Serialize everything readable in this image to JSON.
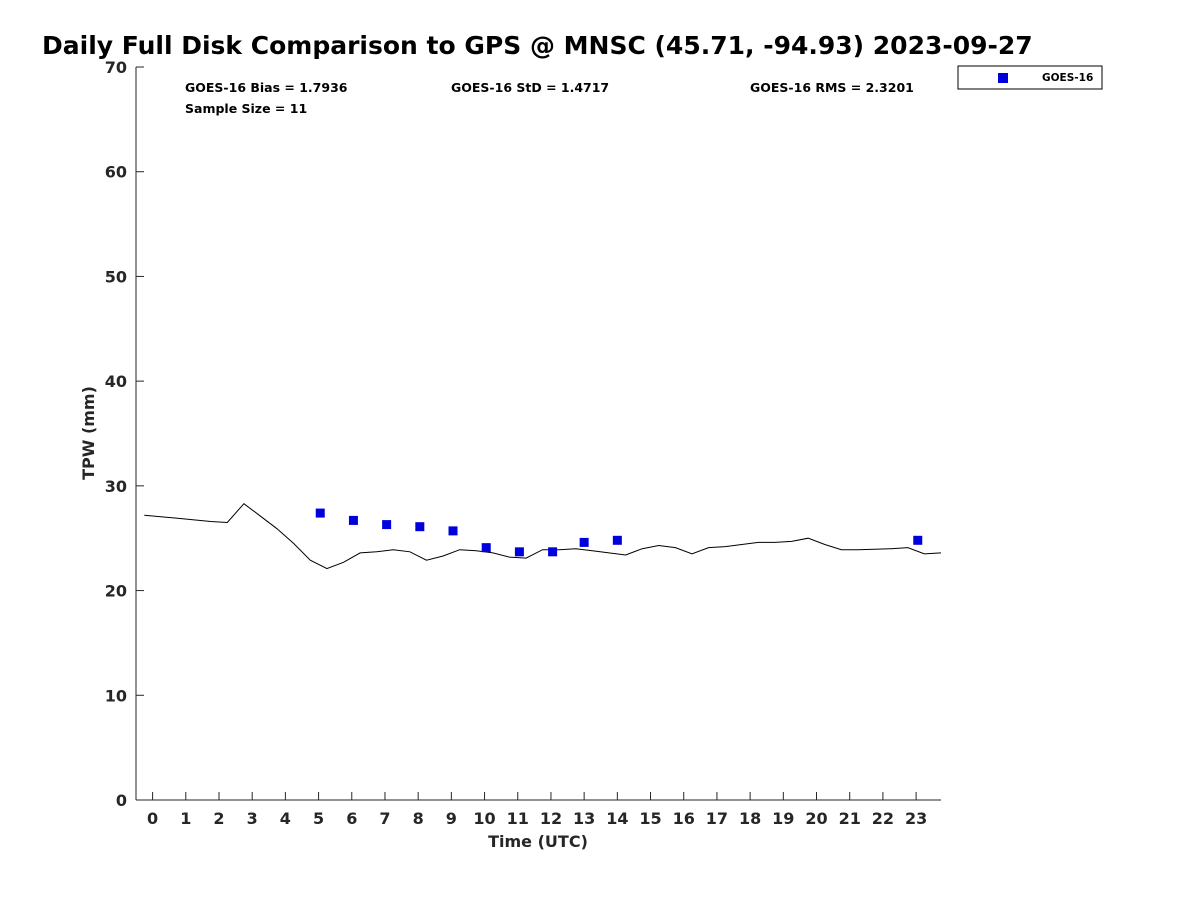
{
  "chart_data": {
    "type": "scatter",
    "title": "Daily Full Disk Comparison to GPS @ MNSC (45.71, -94.93) 2023-09-27",
    "xlabel": "Time (UTC)",
    "ylabel": "TPW (mm)",
    "xlim": [
      -0.5,
      23.75
    ],
    "ylim": [
      0,
      70
    ],
    "x_ticks": [
      "0",
      "1",
      "2",
      "3",
      "4",
      "5",
      "6",
      "7",
      "8",
      "9",
      "10",
      "11",
      "12",
      "13",
      "14",
      "15",
      "16",
      "17",
      "18",
      "19",
      "20",
      "21",
      "22",
      "23"
    ],
    "y_ticks": [
      "0",
      "10",
      "20",
      "30",
      "40",
      "50",
      "60",
      "70"
    ],
    "grid": false,
    "legend": {
      "placement": "top-right-outside",
      "entries": [
        "GOES-16"
      ]
    },
    "stats": {
      "bias": "GOES-16 Bias = 1.7936",
      "std": "GOES-16 StD = 1.4717",
      "rms": "GOES-16 RMS = 2.3201",
      "sample": "Sample Size = 11"
    },
    "series": [
      {
        "name": "GOES-16",
        "kind": "scatter",
        "marker": "square",
        "color": "#0000dd",
        "x": [
          5.05,
          6.05,
          7.05,
          8.05,
          9.05,
          10.05,
          11.05,
          12.05,
          13.0,
          14.0,
          23.05
        ],
        "y": [
          27.4,
          26.7,
          26.3,
          26.1,
          25.7,
          24.1,
          23.7,
          23.7,
          24.6,
          24.8,
          24.8
        ]
      },
      {
        "kind": "line",
        "color": "#000000",
        "x": [
          -0.25,
          0.75,
          1.75,
          2.25,
          2.75,
          3.25,
          3.75,
          4.25,
          4.75,
          5.25,
          5.75,
          6.25,
          6.75,
          7.25,
          7.75,
          8.25,
          8.75,
          9.25,
          9.75,
          10.25,
          10.75,
          11.25,
          11.75,
          12.25,
          12.75,
          13.25,
          13.75,
          14.25,
          14.75,
          15.25,
          15.75,
          16.25,
          16.75,
          17.25,
          17.75,
          18.25,
          18.75,
          19.25,
          19.75,
          20.25,
          20.75,
          21.25,
          21.75,
          22.25,
          22.75,
          23.25,
          23.75
        ],
        "y": [
          27.2,
          26.9,
          26.6,
          26.5,
          28.3,
          27.1,
          25.9,
          24.5,
          22.9,
          22.1,
          22.7,
          23.6,
          23.7,
          23.9,
          23.7,
          22.9,
          23.3,
          23.9,
          23.8,
          23.6,
          23.2,
          23.1,
          23.9,
          23.9,
          24.0,
          23.8,
          23.6,
          23.4,
          24.0,
          24.3,
          24.1,
          23.5,
          24.1,
          24.2,
          24.4,
          24.6,
          24.6,
          24.7,
          25.0,
          24.4,
          23.9,
          23.9,
          23.95,
          24.0,
          24.1,
          23.5,
          23.6
        ]
      }
    ]
  }
}
